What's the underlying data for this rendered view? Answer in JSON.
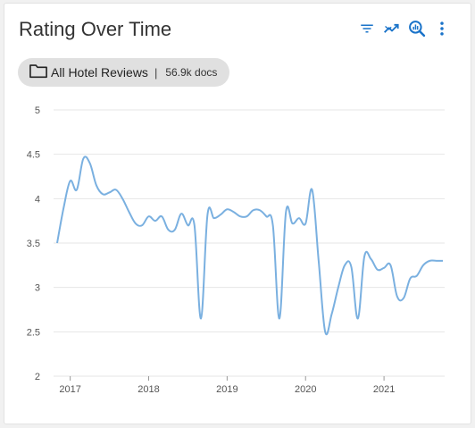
{
  "widget": {
    "title": "Rating Over Time",
    "toolbar": {
      "filter_icon": "filter-list-icon",
      "trend_icon": "trending-icon",
      "search_icon": "zoom-insights-icon",
      "more_icon": "more-vert-icon"
    },
    "source_chip": {
      "icon": "folder-icon",
      "label": "All Hotel Reviews",
      "separator": "|",
      "count": "56.9k docs"
    },
    "colors": {
      "line": "#7ab0e0",
      "icon": "#1a73c9",
      "grid": "#e6e6e6"
    }
  },
  "chart_data": {
    "type": "line",
    "title": "",
    "xlabel": "",
    "ylabel": "",
    "ylim": [
      2,
      5
    ],
    "xlim": [
      "2016-11",
      "2021-10"
    ],
    "y_ticks": [
      "5",
      "4.5",
      "4",
      "3.5",
      "3",
      "2.5",
      "2"
    ],
    "x_ticks": [
      "2017",
      "2018",
      "2019",
      "2020",
      "2021"
    ],
    "grid": true,
    "legend": "none",
    "series": [
      {
        "x": [
          "2016-11",
          "2016-12",
          "2017-01",
          "2017-02",
          "2017-03",
          "2017-04",
          "2017-05",
          "2017-06",
          "2017-07",
          "2017-08",
          "2017-09",
          "2017-10",
          "2017-11",
          "2017-12",
          "2018-01",
          "2018-02",
          "2018-03",
          "2018-04",
          "2018-05",
          "2018-06",
          "2018-07",
          "2018-08",
          "2018-09",
          "2018-10",
          "2018-11",
          "2018-12",
          "2019-01",
          "2019-02",
          "2019-03",
          "2019-04",
          "2019-05",
          "2019-06",
          "2019-07",
          "2019-08",
          "2019-09",
          "2019-10",
          "2019-11",
          "2019-12",
          "2020-01",
          "2020-02",
          "2020-03",
          "2020-04",
          "2020-05",
          "2020-06",
          "2020-07",
          "2020-08",
          "2020-09",
          "2020-10",
          "2020-11",
          "2020-12",
          "2021-01",
          "2021-02",
          "2021-03",
          "2021-04",
          "2021-05",
          "2021-06",
          "2021-07",
          "2021-08",
          "2021-09",
          "2021-10"
        ],
        "values": [
          3.5,
          3.9,
          4.2,
          4.1,
          4.45,
          4.4,
          4.15,
          4.05,
          4.07,
          4.1,
          4.0,
          3.85,
          3.72,
          3.7,
          3.8,
          3.75,
          3.8,
          3.65,
          3.65,
          3.83,
          3.7,
          3.7,
          2.65,
          3.82,
          3.78,
          3.82,
          3.88,
          3.85,
          3.8,
          3.8,
          3.87,
          3.87,
          3.8,
          3.7,
          2.65,
          3.85,
          3.72,
          3.78,
          3.72,
          4.1,
          3.3,
          2.5,
          2.7,
          3.0,
          3.25,
          3.23,
          2.65,
          3.35,
          3.32,
          3.2,
          3.22,
          3.25,
          2.9,
          2.88,
          3.1,
          3.13,
          3.25,
          3.3,
          3.3,
          3.3
        ]
      }
    ]
  }
}
